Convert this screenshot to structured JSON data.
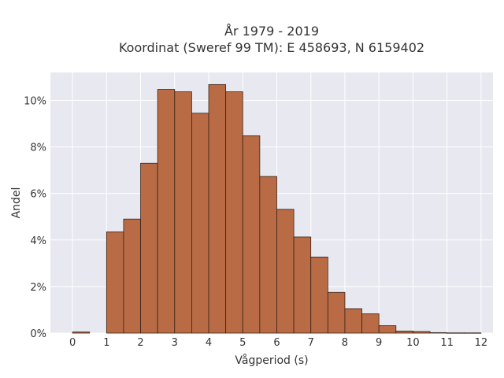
{
  "chart_data": {
    "type": "bar",
    "title_lines": [
      "År 1979 - 2019",
      "Koordinat (Sweref 99 TM): E 458693, N 6159402"
    ],
    "xlabel": "Vågperiod (s)",
    "ylabel": "Andel",
    "xlim": [
      -0.65,
      12.35
    ],
    "ylim": [
      0,
      0.112
    ],
    "grid": true,
    "bin_width": 0.5,
    "bin_start": [
      0,
      1,
      1.5,
      2,
      2.5,
      3,
      3.5,
      4,
      4.5,
      5,
      5.5,
      6,
      6.5,
      7,
      7.5,
      8,
      8.5,
      9,
      9.5,
      10,
      10.5,
      11,
      11.5
    ],
    "values": [
      0.0005,
      0.0435,
      0.049,
      0.073,
      0.1047,
      0.1037,
      0.0945,
      0.1068,
      0.1037,
      0.0848,
      0.0673,
      0.0532,
      0.0413,
      0.0327,
      0.0175,
      0.0105,
      0.0083,
      0.0032,
      0.0009,
      0.0007,
      0.0002,
      0.0001,
      0.0001
    ],
    "xticks": [
      0,
      1,
      2,
      3,
      4,
      5,
      6,
      7,
      8,
      9,
      10,
      11,
      12
    ],
    "yticks": [
      {
        "value": 0,
        "label": "0%"
      },
      {
        "value": 0.02,
        "label": "2%"
      },
      {
        "value": 0.04,
        "label": "4%"
      },
      {
        "value": 0.06,
        "label": "6%"
      },
      {
        "value": 0.08,
        "label": "8%"
      },
      {
        "value": 0.1,
        "label": "10%"
      }
    ],
    "colors": {
      "bar_fill": "#b86b44",
      "bar_stroke": "#3a2418",
      "plot_bg": "#e8e9f0",
      "grid": "#ffffff"
    }
  }
}
